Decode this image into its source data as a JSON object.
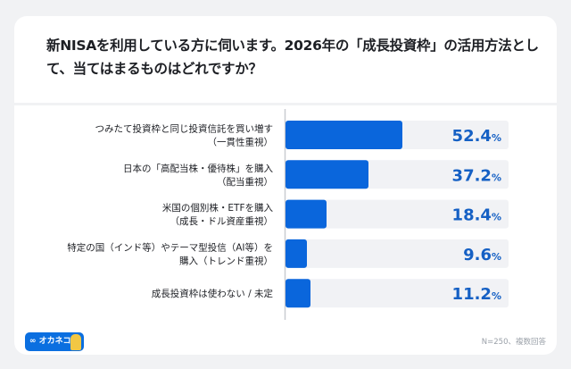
{
  "chart_data": {
    "type": "bar",
    "orientation": "horizontal",
    "title": "新NISAを利用している方に伺います。2026年の「成長投資枠」の活用方法として、当てはまるものはどれですか？",
    "categories": [
      [
        "つみたて投資枠と同じ投資信託を買い増す",
        "（一貫性重視）"
      ],
      [
        "日本の「高配当株・優待株」を購入",
        "（配当重視）"
      ],
      [
        "米国の個別株・ETFを購入",
        "（成長・ドル資産重視）"
      ],
      [
        "特定の国（インド等）やテーマ型投信（AI等）を",
        "購入（トレンド重視）"
      ],
      [
        "成長投資枠は使わない / 未定"
      ]
    ],
    "values": [
      52.4,
      37.2,
      18.4,
      9.6,
      11.2
    ],
    "value_labels": [
      "52.4",
      "37.2",
      "18.4",
      "9.6",
      "11.2"
    ],
    "unit": "%",
    "xlim": [
      0,
      100
    ],
    "grid": false,
    "colors": {
      "bar": "#0a66dc",
      "track": "#f1f2f5",
      "value": "#1560c4",
      "axis": "#c9ccd1"
    }
  },
  "footer": {
    "note": "N=250、複数回答",
    "logo": "∞ オカネコ"
  }
}
